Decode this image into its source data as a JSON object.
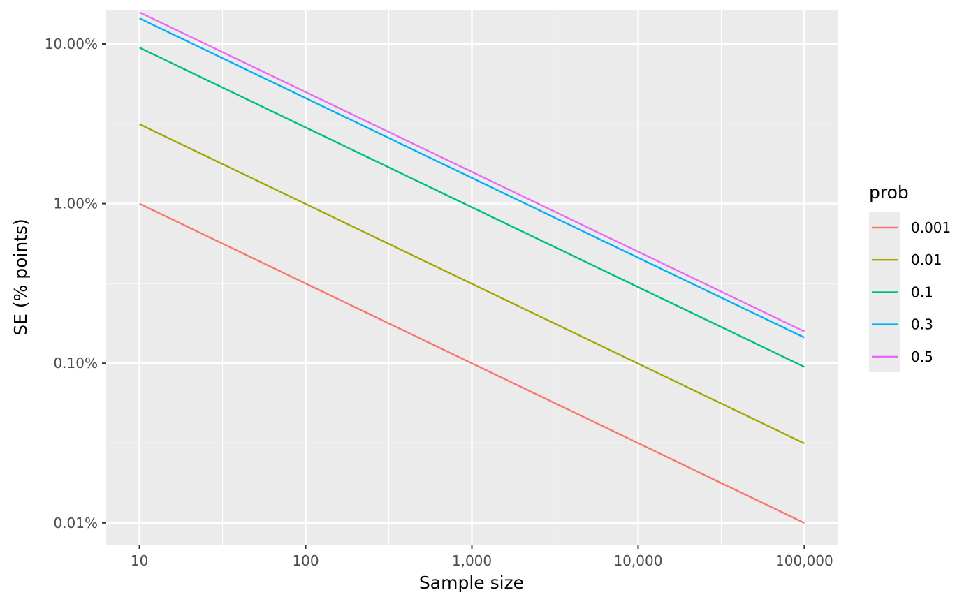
{
  "chart_data": {
    "type": "line",
    "title": "",
    "xlabel": "Sample size",
    "ylabel": "SE (% points)",
    "x_scale": "log10",
    "y_scale": "log10",
    "xlim": [
      10,
      100000
    ],
    "ylim": [
      0.0001,
      0.1
    ],
    "x_ticks": [
      10,
      100,
      1000,
      10000,
      100000
    ],
    "x_tick_labels": [
      "10",
      "100",
      "1,000",
      "10,000",
      "100,000"
    ],
    "y_ticks": [
      0.0001,
      0.001,
      0.01,
      0.1
    ],
    "y_tick_labels": [
      "0.01%",
      "0.10%",
      "1.00%",
      "10.00%"
    ],
    "grid": true,
    "legend": {
      "title": "prob",
      "position": "right"
    },
    "x": [
      10,
      100000
    ],
    "series": [
      {
        "name": "0.001",
        "color": "#F8766D",
        "values": [
          0.00999,
          9.99e-05
        ]
      },
      {
        "name": "0.01",
        "color": "#A3A500",
        "values": [
          0.03146,
          0.0003146
        ]
      },
      {
        "name": "0.1",
        "color": "#00BF7D",
        "values": [
          0.09487,
          0.0009487
        ]
      },
      {
        "name": "0.3",
        "color": "#00B0F6",
        "values": [
          0.14491,
          0.0014491
        ]
      },
      {
        "name": "0.5",
        "color": "#E76BF3",
        "values": [
          0.15811,
          0.0015811
        ]
      }
    ]
  }
}
